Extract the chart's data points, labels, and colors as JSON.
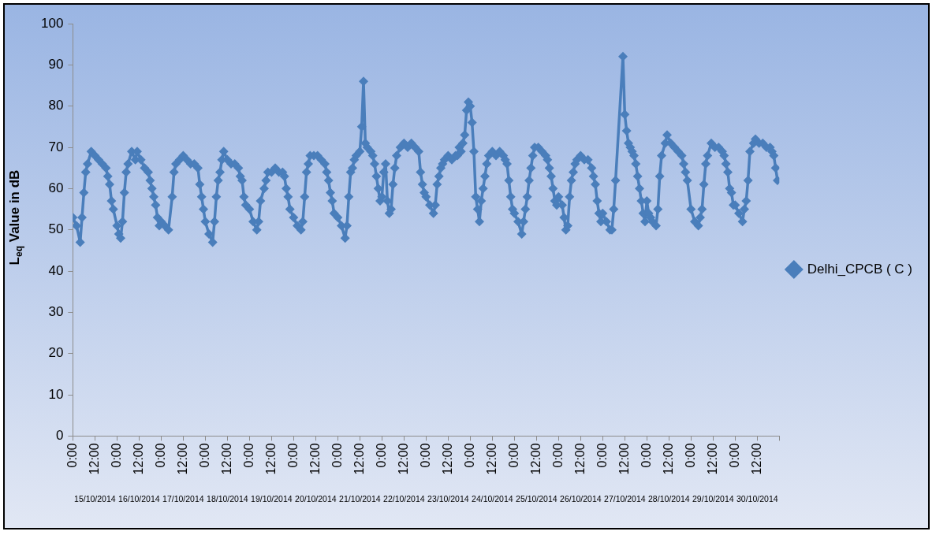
{
  "chart_data": {
    "type": "line",
    "ylabel": "L$_{eq}$ Value in dB",
    "ylim": [
      0,
      100
    ],
    "yticks": [
      0,
      10,
      20,
      30,
      40,
      50,
      60,
      70,
      80,
      90,
      100
    ],
    "xlim": [
      "2014-10-15T00:00",
      "2014-10-31T00:00"
    ],
    "xticks": [
      {
        "value": "2014-10-15T00:00",
        "label": "0:00"
      },
      {
        "value": "2014-10-15T12:00",
        "label": "12:00"
      },
      {
        "value": "2014-10-16T00:00",
        "label": "0:00"
      },
      {
        "value": "2014-10-16T12:00",
        "label": "12:00"
      },
      {
        "value": "2014-10-17T00:00",
        "label": "0:00"
      },
      {
        "value": "2014-10-17T12:00",
        "label": "12:00"
      },
      {
        "value": "2014-10-18T00:00",
        "label": "0:00"
      },
      {
        "value": "2014-10-18T12:00",
        "label": "12:00"
      },
      {
        "value": "2014-10-19T00:00",
        "label": "0:00"
      },
      {
        "value": "2014-10-19T12:00",
        "label": "12:00"
      },
      {
        "value": "2014-10-20T00:00",
        "label": "0:00"
      },
      {
        "value": "2014-10-20T12:00",
        "label": "12:00"
      },
      {
        "value": "2014-10-21T00:00",
        "label": "0:00"
      },
      {
        "value": "2014-10-21T12:00",
        "label": "12:00"
      },
      {
        "value": "2014-10-22T00:00",
        "label": "0:00"
      },
      {
        "value": "2014-10-22T12:00",
        "label": "12:00"
      },
      {
        "value": "2014-10-23T00:00",
        "label": "0:00"
      },
      {
        "value": "2014-10-23T12:00",
        "label": "12:00"
      },
      {
        "value": "2014-10-24T00:00",
        "label": "0:00"
      },
      {
        "value": "2014-10-24T12:00",
        "label": "12:00"
      },
      {
        "value": "2014-10-25T00:00",
        "label": "0:00"
      },
      {
        "value": "2014-10-25T12:00",
        "label": "12:00"
      },
      {
        "value": "2014-10-26T00:00",
        "label": "0:00"
      },
      {
        "value": "2014-10-26T12:00",
        "label": "12:00"
      },
      {
        "value": "2014-10-27T00:00",
        "label": "0:00"
      },
      {
        "value": "2014-10-27T12:00",
        "label": "12:00"
      },
      {
        "value": "2014-10-28T00:00",
        "label": "0:00"
      },
      {
        "value": "2014-10-28T12:00",
        "label": "12:00"
      },
      {
        "value": "2014-10-29T00:00",
        "label": "0:00"
      },
      {
        "value": "2014-10-29T12:00",
        "label": "12:00"
      },
      {
        "value": "2014-10-30T00:00",
        "label": "0:00"
      },
      {
        "value": "2014-10-30T12:00",
        "label": "12:00"
      },
      {
        "value": "2014-10-31T00:00",
        "label": null
      }
    ],
    "x2lim": [
      "2014-10-15T00:00",
      "2014-10-31T00:00"
    ],
    "x2ticks": [
      {
        "value": "2014-10-15T12:00",
        "label": "15/10/2014"
      },
      {
        "value": "2014-10-16T12:00",
        "label": "16/10/2014"
      },
      {
        "value": "2014-10-17T12:00",
        "label": "17/10/2014"
      },
      {
        "value": "2014-10-18T12:00",
        "label": "18/10/2014"
      },
      {
        "value": "2014-10-19T12:00",
        "label": "19/10/2014"
      },
      {
        "value": "2014-10-20T12:00",
        "label": "20/10/2014"
      },
      {
        "value": "2014-10-21T12:00",
        "label": "21/10/2014"
      },
      {
        "value": "2014-10-22T12:00",
        "label": "22/10/2014"
      },
      {
        "value": "2014-10-23T12:00",
        "label": "23/10/2014"
      },
      {
        "value": "2014-10-24T12:00",
        "label": "24/10/2014"
      },
      {
        "value": "2014-10-25T12:00",
        "label": "25/10/2014"
      },
      {
        "value": "2014-10-26T12:00",
        "label": "26/10/2014"
      },
      {
        "value": "2014-10-27T12:00",
        "label": "27/10/2014"
      },
      {
        "value": "2014-10-28T12:00",
        "label": "28/10/2014"
      },
      {
        "value": "2014-10-29T12:00",
        "label": "29/10/2014"
      },
      {
        "value": "2014-10-30T12:00",
        "label": "30/10/2014"
      }
    ],
    "grid": false,
    "legend": "right",
    "marker": "diamond",
    "line_style": "solid",
    "series": [
      {
        "name": "Delhi_CPCB ( C )",
        "color": "#4a7ebb",
        "x": [
          "2014-10-15T00:00",
          "2014-10-15T02:00",
          "2014-10-15T04:00",
          "2014-10-15T05:00",
          "2014-10-15T06:00",
          "2014-10-15T07:00",
          "2014-10-15T08:00",
          "2014-10-15T10:00",
          "2014-10-15T12:00",
          "2014-10-15T14:00",
          "2014-10-15T16:00",
          "2014-10-15T18:00",
          "2014-10-15T19:00",
          "2014-10-15T20:00",
          "2014-10-15T21:00",
          "2014-10-15T22:00",
          "2014-10-16T00:00",
          "2014-10-16T01:00",
          "2014-10-16T02:00",
          "2014-10-16T03:00",
          "2014-10-16T04:00",
          "2014-10-16T05:00",
          "2014-10-16T06:00",
          "2014-10-16T08:00",
          "2014-10-16T10:00",
          "2014-10-16T11:00",
          "2014-10-16T13:00",
          "2014-10-16T15:00",
          "2014-10-16T17:00",
          "2014-10-16T18:00",
          "2014-10-16T19:00",
          "2014-10-16T20:00",
          "2014-10-16T21:00",
          "2014-10-16T22:00",
          "2014-10-16T23:00",
          "2014-10-17T00:00",
          "2014-10-17T02:00",
          "2014-10-17T04:00",
          "2014-10-17T06:00",
          "2014-10-17T07:00",
          "2014-10-17T08:00",
          "2014-10-17T10:00",
          "2014-10-17T12:00",
          "2014-10-17T14:00",
          "2014-10-17T16:00",
          "2014-10-17T18:00",
          "2014-10-17T20:00",
          "2014-10-17T21:00",
          "2014-10-17T22:00",
          "2014-10-17T23:00",
          "2014-10-18T00:00",
          "2014-10-18T02:00",
          "2014-10-18T04:00",
          "2014-10-18T05:00",
          "2014-10-18T06:00",
          "2014-10-18T07:00",
          "2014-10-18T08:00",
          "2014-10-18T09:00",
          "2014-10-18T10:00",
          "2014-10-18T12:00",
          "2014-10-18T14:00",
          "2014-10-18T16:00",
          "2014-10-18T18:00",
          "2014-10-18T19:00",
          "2014-10-18T20:00",
          "2014-10-18T21:00",
          "2014-10-18T22:00",
          "2014-10-19T00:00",
          "2014-10-19T02:00",
          "2014-10-19T04:00",
          "2014-10-19T05:00",
          "2014-10-19T06:00",
          "2014-10-19T08:00",
          "2014-10-19T09:00",
          "2014-10-19T10:00",
          "2014-10-19T12:00",
          "2014-10-19T14:00",
          "2014-10-19T16:00",
          "2014-10-19T18:00",
          "2014-10-19T19:00",
          "2014-10-19T20:00",
          "2014-10-19T21:00",
          "2014-10-19T22:00",
          "2014-10-20T00:00",
          "2014-10-20T02:00",
          "2014-10-20T04:00",
          "2014-10-20T05:00",
          "2014-10-20T06:00",
          "2014-10-20T07:00",
          "2014-10-20T08:00",
          "2014-10-20T09:00",
          "2014-10-20T11:00",
          "2014-10-20T13:00",
          "2014-10-20T15:00",
          "2014-10-20T17:00",
          "2014-10-20T18:00",
          "2014-10-20T19:00",
          "2014-10-20T20:00",
          "2014-10-20T21:00",
          "2014-10-20T22:00",
          "2014-10-21T00:00",
          "2014-10-21T02:00",
          "2014-10-21T04:00",
          "2014-10-21T05:00",
          "2014-10-21T06:00",
          "2014-10-21T07:00",
          "2014-10-21T08:00",
          "2014-10-21T09:00",
          "2014-10-21T10:00",
          "2014-10-21T12:00",
          "2014-10-21T13:00",
          "2014-10-21T14:00",
          "2014-10-21T15:00",
          "2014-10-21T16:00",
          "2014-10-21T18:00",
          "2014-10-21T19:00",
          "2014-10-21T20:00",
          "2014-10-21T21:00",
          "2014-10-21T22:00",
          "2014-10-21T23:00",
          "2014-10-22T00:00",
          "2014-10-22T01:00",
          "2014-10-22T02:00",
          "2014-10-22T03:00",
          "2014-10-22T04:00",
          "2014-10-22T05:00",
          "2014-10-22T06:00",
          "2014-10-22T07:00",
          "2014-10-22T08:00",
          "2014-10-22T10:00",
          "2014-10-22T12:00",
          "2014-10-22T14:00",
          "2014-10-22T16:00",
          "2014-10-22T18:00",
          "2014-10-22T20:00",
          "2014-10-22T21:00",
          "2014-10-22T22:00",
          "2014-10-22T23:00",
          "2014-10-23T00:00",
          "2014-10-23T02:00",
          "2014-10-23T04:00",
          "2014-10-23T05:00",
          "2014-10-23T06:00",
          "2014-10-23T07:00",
          "2014-10-23T08:00",
          "2014-10-23T09:00",
          "2014-10-23T10:00",
          "2014-10-23T12:00",
          "2014-10-23T14:00",
          "2014-10-23T16:00",
          "2014-10-23T17:00",
          "2014-10-23T18:00",
          "2014-10-23T19:00",
          "2014-10-23T20:00",
          "2014-10-23T21:00",
          "2014-10-23T22:00",
          "2014-10-23T23:00",
          "2014-10-24T00:00",
          "2014-10-24T01:00",
          "2014-10-24T02:00",
          "2014-10-24T03:00",
          "2014-10-24T04:00",
          "2014-10-24T05:00",
          "2014-10-24T06:00",
          "2014-10-24T07:00",
          "2014-10-24T08:00",
          "2014-10-24T09:00",
          "2014-10-24T10:00",
          "2014-10-24T12:00",
          "2014-10-24T14:00",
          "2014-10-24T16:00",
          "2014-10-24T18:00",
          "2014-10-24T19:00",
          "2014-10-24T20:00",
          "2014-10-24T21:00",
          "2014-10-24T22:00",
          "2014-10-24T23:00",
          "2014-10-25T00:00",
          "2014-10-25T02:00",
          "2014-10-25T04:00",
          "2014-10-25T05:00",
          "2014-10-25T06:00",
          "2014-10-25T07:00",
          "2014-10-25T08:00",
          "2014-10-25T09:00",
          "2014-10-25T10:00",
          "2014-10-25T11:00",
          "2014-10-25T13:00",
          "2014-10-25T15:00",
          "2014-10-25T17:00",
          "2014-10-25T18:00",
          "2014-10-25T19:00",
          "2014-10-25T20:00",
          "2014-10-25T21:00",
          "2014-10-25T22:00",
          "2014-10-25T23:00",
          "2014-10-26T00:00",
          "2014-10-26T02:00",
          "2014-10-26T03:00",
          "2014-10-26T04:00",
          "2014-10-26T05:00",
          "2014-10-26T06:00",
          "2014-10-26T07:00",
          "2014-10-26T08:00",
          "2014-10-26T09:00",
          "2014-10-26T10:00",
          "2014-10-26T12:00",
          "2014-10-26T14:00",
          "2014-10-26T16:00",
          "2014-10-26T18:00",
          "2014-10-26T19:00",
          "2014-10-26T20:00",
          "2014-10-26T21:00",
          "2014-10-26T22:00",
          "2014-10-26T23:00",
          "2014-10-27T00:00",
          "2014-10-27T02:00",
          "2014-10-27T04:00",
          "2014-10-27T05:00",
          "2014-10-27T06:00",
          "2014-10-27T07:00",
          "2014-10-27T11:00",
          "2014-10-27T12:00",
          "2014-10-27T13:00",
          "2014-10-27T14:00",
          "2014-10-27T15:00",
          "2014-10-27T16:00",
          "2014-10-27T17:00",
          "2014-10-27T18:00",
          "2014-10-27T19:00",
          "2014-10-27T20:00",
          "2014-10-27T21:00",
          "2014-10-27T22:00",
          "2014-10-27T23:00",
          "2014-10-28T00:00",
          "2014-10-28T01:00",
          "2014-10-28T02:00",
          "2014-10-28T03:00",
          "2014-10-28T05:00",
          "2014-10-28T06:00",
          "2014-10-28T07:00",
          "2014-10-28T08:00",
          "2014-10-28T10:00",
          "2014-10-28T11:00",
          "2014-10-28T13:00",
          "2014-10-28T15:00",
          "2014-10-28T17:00",
          "2014-10-28T19:00",
          "2014-10-28T20:00",
          "2014-10-28T21:00",
          "2014-10-28T22:00",
          "2014-10-29T00:00",
          "2014-10-29T02:00",
          "2014-10-29T04:00",
          "2014-10-29T05:00",
          "2014-10-29T06:00",
          "2014-10-29T07:00",
          "2014-10-29T08:00",
          "2014-10-29T09:00",
          "2014-10-29T11:00",
          "2014-10-29T13:00",
          "2014-10-29T15:00",
          "2014-10-29T17:00",
          "2014-10-29T18:00",
          "2014-10-29T19:00",
          "2014-10-29T20:00",
          "2014-10-29T21:00",
          "2014-10-29T22:00",
          "2014-10-29T23:00",
          "2014-10-30T00:00",
          "2014-10-30T02:00",
          "2014-10-30T04:00",
          "2014-10-30T05:00",
          "2014-10-30T06:00",
          "2014-10-30T07:00",
          "2014-10-30T08:00",
          "2014-10-30T10:00",
          "2014-10-30T11:00",
          "2014-10-30T13:00",
          "2014-10-30T15:00",
          "2014-10-30T17:00",
          "2014-10-30T19:00",
          "2014-10-30T20:00",
          "2014-10-30T21:00",
          "2014-10-30T22:00",
          "2014-10-30T23:00"
        ],
        "values": [
          53,
          51,
          47,
          53,
          59,
          64,
          66,
          69,
          68,
          67,
          66,
          65,
          63,
          61,
          57,
          55,
          51,
          49,
          48,
          52,
          59,
          64,
          66,
          69,
          67,
          69,
          67,
          65,
          64,
          62,
          60,
          58,
          56,
          53,
          51,
          52,
          51,
          50,
          58,
          64,
          66,
          67,
          68,
          67,
          66,
          66,
          65,
          61,
          58,
          55,
          52,
          49,
          47,
          52,
          58,
          62,
          64,
          67,
          69,
          67,
          66,
          66,
          65,
          63,
          62,
          58,
          56,
          55,
          52,
          50,
          52,
          57,
          60,
          62,
          64,
          64,
          65,
          64,
          64,
          63,
          60,
          58,
          55,
          53,
          51,
          50,
          52,
          58,
          64,
          66,
          68,
          68,
          68,
          67,
          66,
          64,
          62,
          59,
          57,
          54,
          53,
          51,
          48,
          51,
          58,
          64,
          65,
          67,
          68,
          69,
          75,
          86,
          71,
          70,
          69,
          68,
          66,
          63,
          60,
          57,
          58,
          64,
          66,
          57,
          54,
          55,
          61,
          65,
          68,
          70,
          71,
          70,
          71,
          70,
          69,
          64,
          61,
          59,
          58,
          56,
          54,
          56,
          61,
          63,
          65,
          66,
          67,
          68,
          67,
          68,
          68,
          70,
          69,
          71,
          73,
          79,
          81,
          80,
          76,
          69,
          58,
          55,
          52,
          57,
          60,
          63,
          66,
          68,
          69,
          68,
          69,
          68,
          67,
          66,
          62,
          58,
          55,
          54,
          52,
          49,
          52,
          55,
          58,
          62,
          65,
          68,
          70,
          70,
          69,
          68,
          67,
          65,
          63,
          60,
          57,
          56,
          58,
          56,
          53,
          50,
          51,
          58,
          62,
          64,
          66,
          67,
          68,
          67,
          67,
          65,
          63,
          61,
          57,
          54,
          52,
          54,
          52,
          50,
          50,
          55,
          62,
          92,
          78,
          74,
          71,
          70,
          69,
          68,
          66,
          63,
          60,
          57,
          54,
          52,
          57,
          54,
          53,
          52,
          51,
          55,
          63,
          68,
          71,
          73,
          71,
          70,
          69,
          68,
          66,
          64,
          62,
          55,
          52,
          51,
          53,
          55,
          61,
          66,
          68,
          71,
          70,
          70,
          69,
          68,
          66,
          64,
          60,
          59,
          56,
          56,
          54,
          52,
          55,
          57,
          62,
          69,
          71,
          72,
          71,
          71,
          70,
          70,
          69,
          68,
          65,
          62
        ]
      }
    ]
  }
}
